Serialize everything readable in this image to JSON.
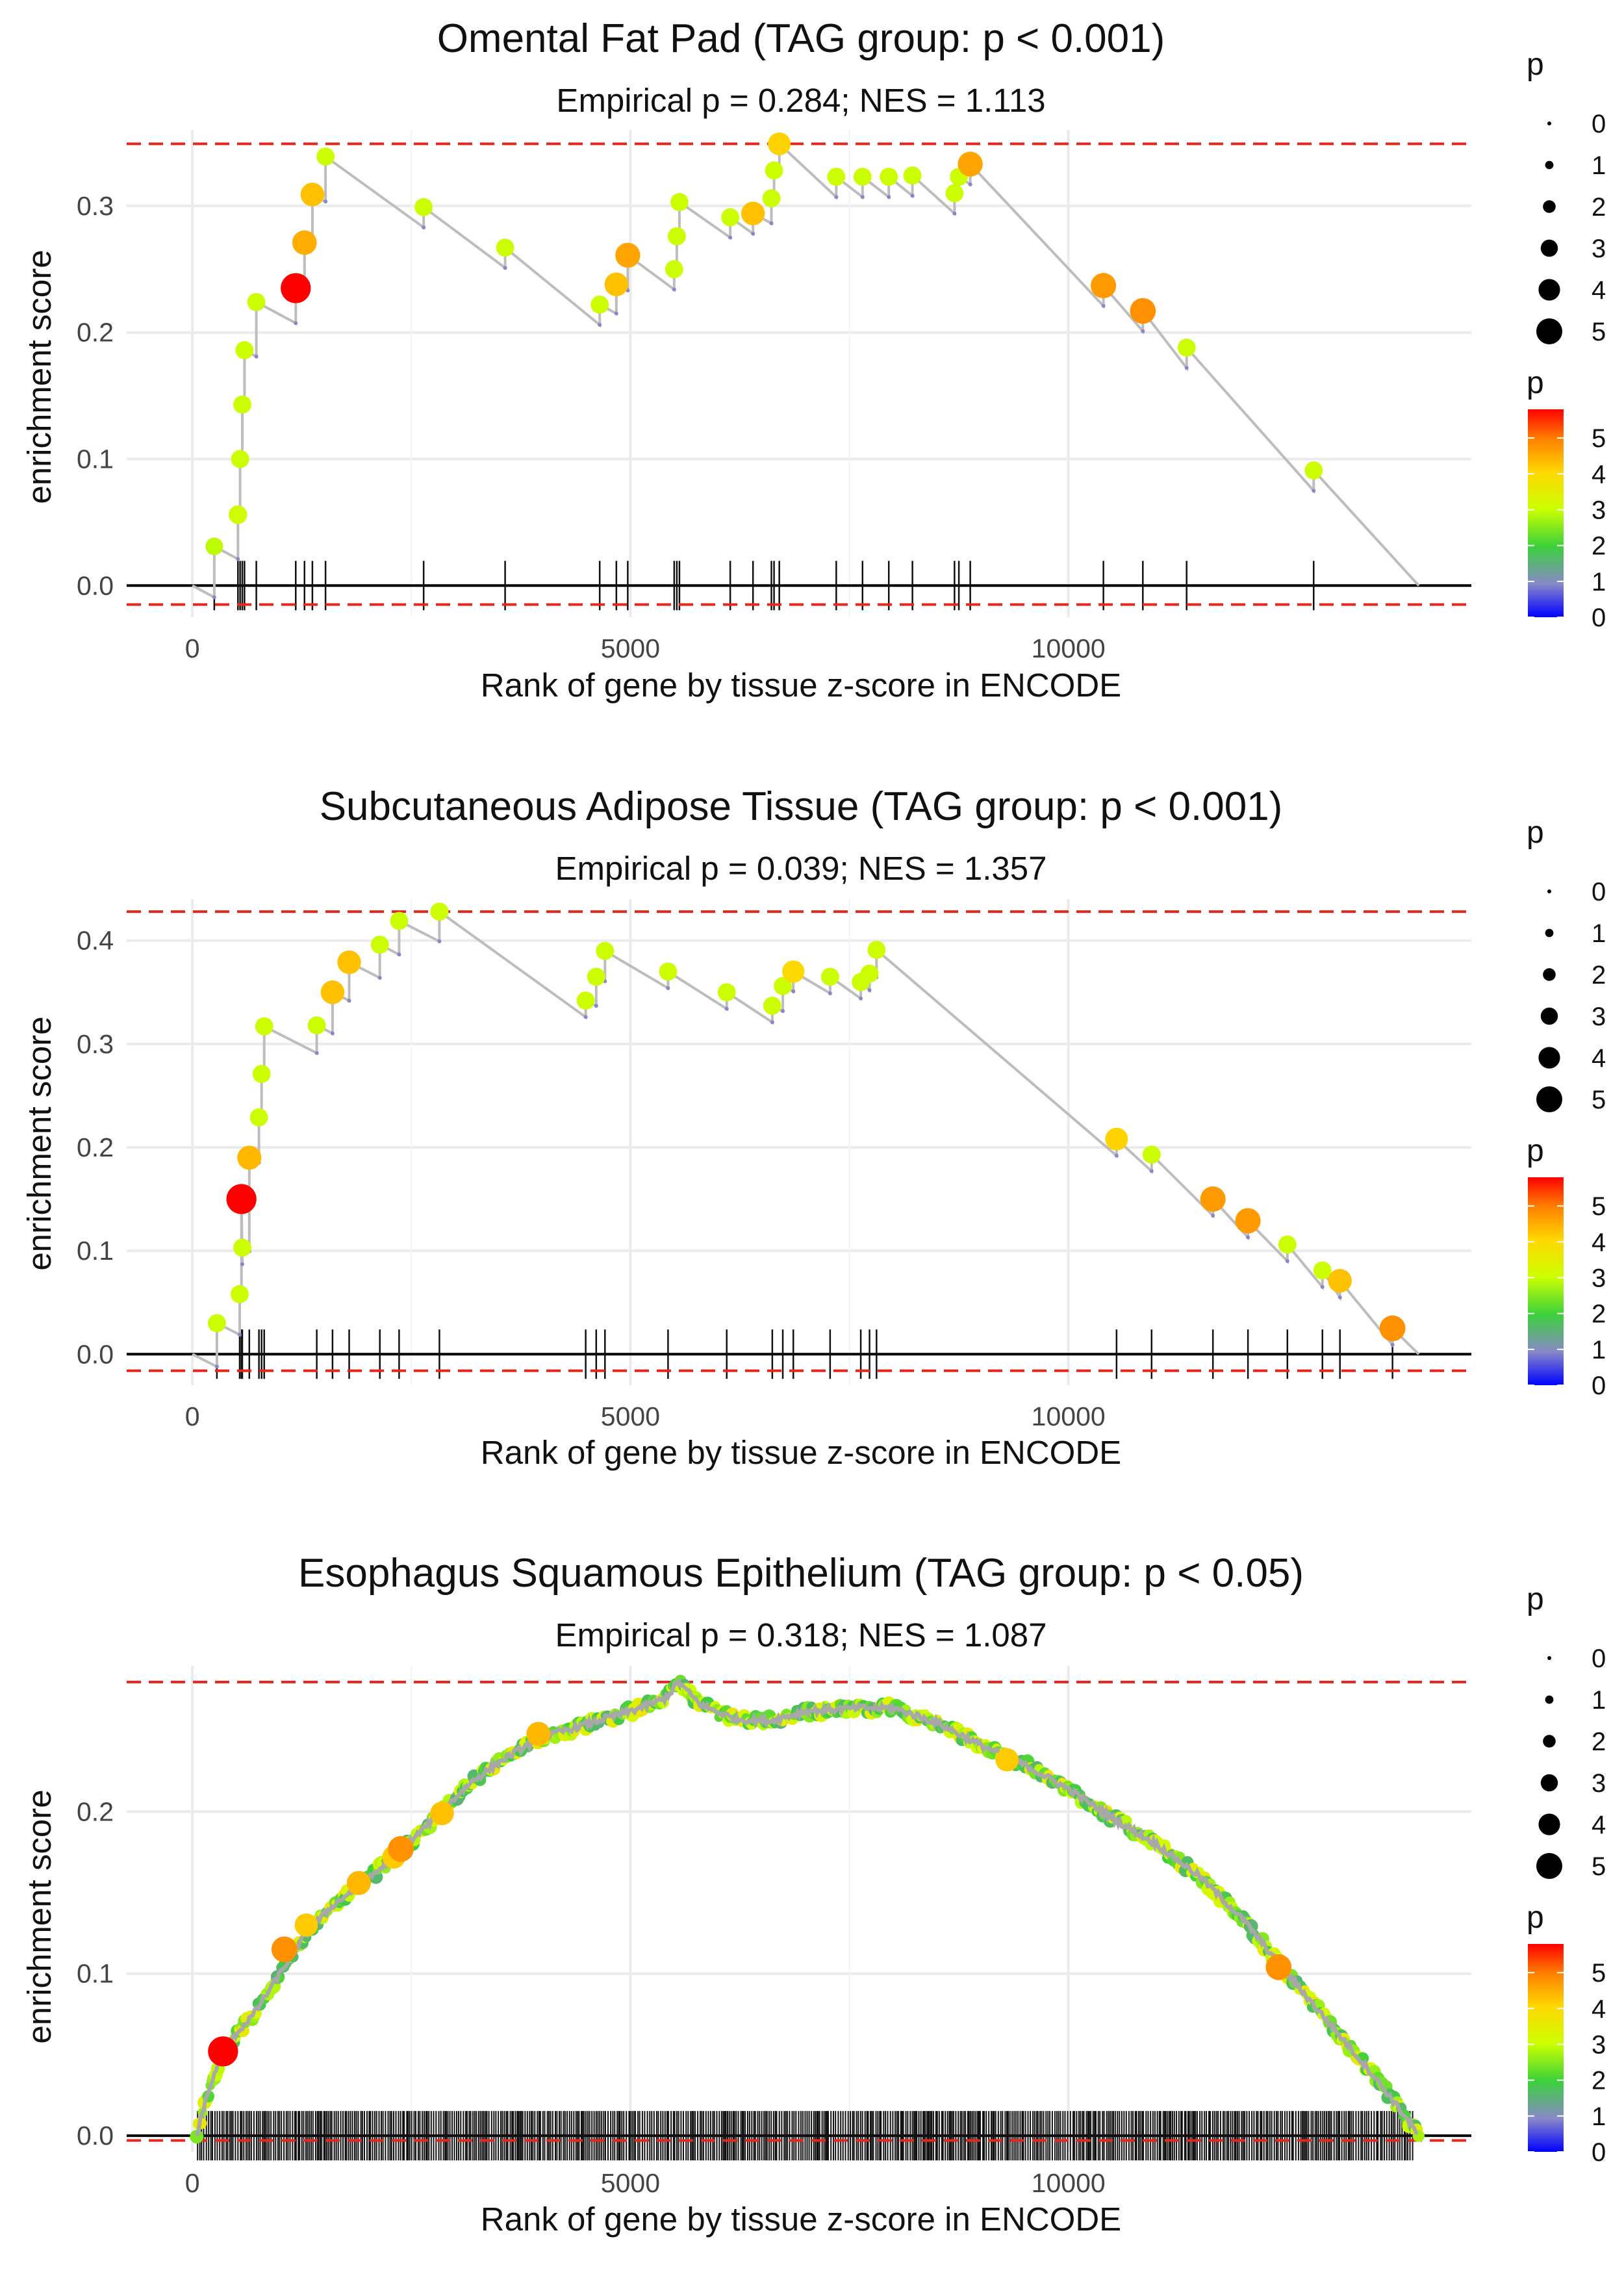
{
  "chart_data": [
    {
      "type": "line",
      "title": "Omental Fat Pad (TAG group: p < 0.001)",
      "subtitle": "Empirical p = 0.284; NES = 1.113",
      "xlabel": "Rank of gene by tissue z-score in ENCODE",
      "ylabel": "enrichment score",
      "xlim": [
        -750,
        14600
      ],
      "ylim": [
        -0.025,
        0.36
      ],
      "x_ticks": [
        0,
        5000,
        10000
      ],
      "y_ticks": [
        0.0,
        0.1,
        0.2,
        0.3
      ],
      "y_tick_labels": [
        "0.0",
        "0.1",
        "0.2",
        "0.3"
      ],
      "max_es": 0.349,
      "min_es": -0.015,
      "end_x": 14000,
      "hits": [
        {
          "x": 250,
          "es": 0.031,
          "p": 2.9
        },
        {
          "x": 520,
          "es": 0.056,
          "p": 3.1
        },
        {
          "x": 545,
          "es": 0.1,
          "p": 3.0
        },
        {
          "x": 570,
          "es": 0.143,
          "p": 3.0
        },
        {
          "x": 595,
          "es": 0.186,
          "p": 3.0
        },
        {
          "x": 730,
          "es": 0.224,
          "p": 3.0
        },
        {
          "x": 1180,
          "es": 0.235,
          "p": 5.8
        },
        {
          "x": 1280,
          "es": 0.271,
          "p": 4.5
        },
        {
          "x": 1370,
          "es": 0.309,
          "p": 4.3
        },
        {
          "x": 1520,
          "es": 0.339,
          "p": 3.0
        },
        {
          "x": 2640,
          "es": 0.299,
          "p": 3.0
        },
        {
          "x": 3570,
          "es": 0.267,
          "p": 3.0
        },
        {
          "x": 4650,
          "es": 0.222,
          "p": 3.0
        },
        {
          "x": 4840,
          "es": 0.238,
          "p": 4.3
        },
        {
          "x": 4970,
          "es": 0.261,
          "p": 4.6
        },
        {
          "x": 5500,
          "es": 0.25,
          "p": 3.0
        },
        {
          "x": 5530,
          "es": 0.276,
          "p": 3.0
        },
        {
          "x": 5560,
          "es": 0.303,
          "p": 3.0
        },
        {
          "x": 6140,
          "es": 0.291,
          "p": 3.0
        },
        {
          "x": 6400,
          "es": 0.294,
          "p": 4.3
        },
        {
          "x": 6610,
          "es": 0.306,
          "p": 3.0
        },
        {
          "x": 6640,
          "es": 0.328,
          "p": 3.0
        },
        {
          "x": 6700,
          "es": 0.349,
          "p": 4.1
        },
        {
          "x": 7350,
          "es": 0.323,
          "p": 3.0
        },
        {
          "x": 7650,
          "es": 0.323,
          "p": 3.0
        },
        {
          "x": 7950,
          "es": 0.323,
          "p": 3.0
        },
        {
          "x": 8220,
          "es": 0.324,
          "p": 3.0
        },
        {
          "x": 8700,
          "es": 0.31,
          "p": 3.0
        },
        {
          "x": 8750,
          "es": 0.323,
          "p": 3.0
        },
        {
          "x": 8880,
          "es": 0.333,
          "p": 4.6
        },
        {
          "x": 10400,
          "es": 0.237,
          "p": 4.7
        },
        {
          "x": 10850,
          "es": 0.217,
          "p": 4.8
        },
        {
          "x": 11350,
          "es": 0.188,
          "p": 3.0
        },
        {
          "x": 12800,
          "es": 0.091,
          "p": 3.0
        }
      ]
    },
    {
      "type": "line",
      "title": "Subcutaneous Adipose Tissue (TAG group: p < 0.001)",
      "subtitle": "Empirical p = 0.039; NES = 1.357",
      "xlabel": "Rank of gene by tissue z-score in ENCODE",
      "ylabel": "enrichment score",
      "xlim": [
        -750,
        14600
      ],
      "ylim": [
        -0.03,
        0.44
      ],
      "x_ticks": [
        0,
        5000,
        10000
      ],
      "y_ticks": [
        0.0,
        0.1,
        0.2,
        0.3,
        0.4
      ],
      "y_tick_labels": [
        "0.0",
        "0.1",
        "0.2",
        "0.3",
        "0.4"
      ],
      "max_es": 0.428,
      "min_es": -0.016,
      "end_x": 14000,
      "hits": [
        {
          "x": 280,
          "es": 0.03,
          "p": 3.0
        },
        {
          "x": 540,
          "es": 0.058,
          "p": 3.0
        },
        {
          "x": 570,
          "es": 0.103,
          "p": 3.0
        },
        {
          "x": 560,
          "es": 0.15,
          "p": 5.8
        },
        {
          "x": 650,
          "es": 0.19,
          "p": 4.4
        },
        {
          "x": 760,
          "es": 0.229,
          "p": 3.0
        },
        {
          "x": 790,
          "es": 0.271,
          "p": 3.0
        },
        {
          "x": 820,
          "es": 0.317,
          "p": 3.0
        },
        {
          "x": 1420,
          "es": 0.318,
          "p": 3.0
        },
        {
          "x": 1600,
          "es": 0.35,
          "p": 4.3
        },
        {
          "x": 1790,
          "es": 0.379,
          "p": 4.3
        },
        {
          "x": 2140,
          "es": 0.396,
          "p": 3.0
        },
        {
          "x": 2360,
          "es": 0.419,
          "p": 3.0
        },
        {
          "x": 2820,
          "es": 0.428,
          "p": 3.0
        },
        {
          "x": 4490,
          "es": 0.342,
          "p": 3.0
        },
        {
          "x": 4610,
          "es": 0.365,
          "p": 3.0
        },
        {
          "x": 4710,
          "es": 0.39,
          "p": 3.0
        },
        {
          "x": 5430,
          "es": 0.37,
          "p": 3.0
        },
        {
          "x": 6100,
          "es": 0.35,
          "p": 3.0
        },
        {
          "x": 6620,
          "es": 0.337,
          "p": 3.0
        },
        {
          "x": 6740,
          "es": 0.356,
          "p": 3.0
        },
        {
          "x": 6860,
          "es": 0.37,
          "p": 4.0
        },
        {
          "x": 7280,
          "es": 0.365,
          "p": 3.0
        },
        {
          "x": 7630,
          "es": 0.36,
          "p": 3.0
        },
        {
          "x": 7730,
          "es": 0.368,
          "p": 3.0
        },
        {
          "x": 7810,
          "es": 0.391,
          "p": 3.0
        },
        {
          "x": 10550,
          "es": 0.208,
          "p": 4.1
        },
        {
          "x": 10950,
          "es": 0.193,
          "p": 3.0
        },
        {
          "x": 11650,
          "es": 0.15,
          "p": 4.7
        },
        {
          "x": 12050,
          "es": 0.129,
          "p": 4.7
        },
        {
          "x": 12500,
          "es": 0.106,
          "p": 3.0
        },
        {
          "x": 12900,
          "es": 0.081,
          "p": 3.0
        },
        {
          "x": 13100,
          "es": 0.071,
          "p": 4.3
        },
        {
          "x": 13700,
          "es": 0.025,
          "p": 4.8
        }
      ]
    },
    {
      "type": "line",
      "title": "Esophagus Squamous Epithelium (TAG group: p < 0.05)",
      "subtitle": "Empirical p = 0.318; NES = 1.087",
      "xlabel": "Rank of gene by tissue z-score in ENCODE",
      "ylabel": "enrichment score",
      "xlim": [
        -750,
        14600
      ],
      "ylim": [
        -0.01,
        0.29
      ],
      "x_ticks": [
        0,
        5000,
        10000
      ],
      "y_ticks": [
        0.0,
        0.1,
        0.2
      ],
      "y_tick_labels": [
        "0.0",
        "0.1",
        "0.2"
      ],
      "max_es": 0.28,
      "min_es": -0.003,
      "end_x": 14000,
      "curve": [
        [
          50,
          0.0
        ],
        [
          150,
          0.022
        ],
        [
          300,
          0.045
        ],
        [
          500,
          0.063
        ],
        [
          700,
          0.075
        ],
        [
          1000,
          0.1
        ],
        [
          1300,
          0.125
        ],
        [
          1600,
          0.142
        ],
        [
          2000,
          0.158
        ],
        [
          2400,
          0.177
        ],
        [
          2800,
          0.198
        ],
        [
          3200,
          0.219
        ],
        [
          3600,
          0.234
        ],
        [
          4000,
          0.246
        ],
        [
          4500,
          0.254
        ],
        [
          5000,
          0.262
        ],
        [
          5400,
          0.27
        ],
        [
          5550,
          0.28
        ],
        [
          5800,
          0.266
        ],
        [
          6200,
          0.257
        ],
        [
          6600,
          0.256
        ],
        [
          7000,
          0.262
        ],
        [
          7600,
          0.264
        ],
        [
          8000,
          0.264
        ],
        [
          8500,
          0.255
        ],
        [
          9000,
          0.241
        ],
        [
          9500,
          0.229
        ],
        [
          10000,
          0.214
        ],
        [
          10500,
          0.196
        ],
        [
          11000,
          0.18
        ],
        [
          11500,
          0.16
        ],
        [
          12000,
          0.133
        ],
        [
          12500,
          0.1
        ],
        [
          13000,
          0.068
        ],
        [
          13500,
          0.036
        ],
        [
          13800,
          0.015
        ],
        [
          14000,
          0.0
        ]
      ],
      "large_hits": [
        {
          "x": 350,
          "es": 0.052,
          "p": 5.8
        },
        {
          "x": 1050,
          "es": 0.115,
          "p": 4.8
        },
        {
          "x": 1300,
          "es": 0.13,
          "p": 4.2
        },
        {
          "x": 1900,
          "es": 0.156,
          "p": 4.4
        },
        {
          "x": 2300,
          "es": 0.172,
          "p": 4.2
        },
        {
          "x": 2380,
          "es": 0.177,
          "p": 4.8
        },
        {
          "x": 2850,
          "es": 0.199,
          "p": 4.3
        },
        {
          "x": 3950,
          "es": 0.248,
          "p": 4.4
        },
        {
          "x": 9300,
          "es": 0.232,
          "p": 4.2
        },
        {
          "x": 12400,
          "es": 0.104,
          "p": 4.8
        }
      ]
    }
  ],
  "legend": {
    "size_title": "p",
    "size_labels": [
      "0",
      "1",
      "2",
      "3",
      "4",
      "5"
    ],
    "color_title": "p",
    "color_labels": [
      "5",
      "4",
      "3",
      "2",
      "1",
      "0"
    ]
  },
  "colors": {
    "ref_line": "#e8261c",
    "es_line": "#bdbdbd",
    "grid": "#ebebeb",
    "tick_mark": "#111111"
  }
}
